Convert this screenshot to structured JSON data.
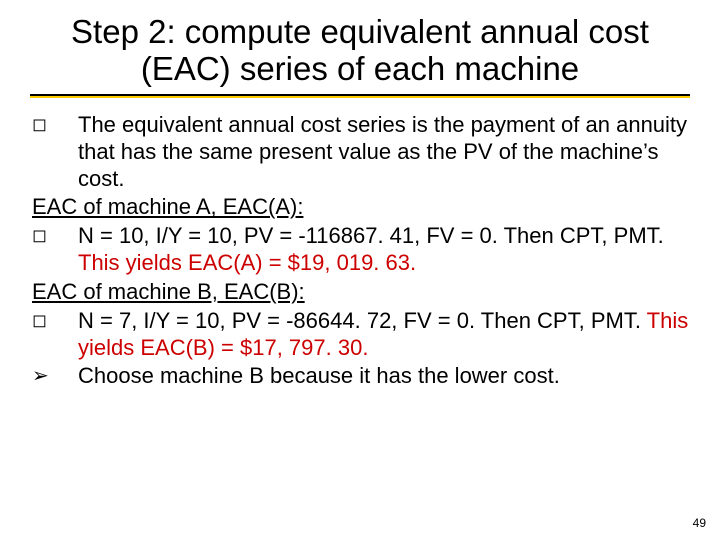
{
  "title": "Step 2: compute equivalent annual cost (EAC) series of each machine",
  "intro": "The equivalent annual cost series is the payment of an annuity that has the same present value as the PV of the machine’s cost.",
  "secA": {
    "heading": "EAC of machine A, EAC(A):",
    "line_pre": "N = 10, I/Y = 10, PV = -116867. 41, FV = 0. Then CPT, PMT. ",
    "line_red": "This yields EAC(A) = $19, 019. 63."
  },
  "secB": {
    "heading": "EAC of machine B, EAC(B):",
    "line_pre": "N = 7, I/Y = 10, PV = -86644. 72, FV = 0. Then CPT, PMT. ",
    "line_red": "This yields EAC(B) = $17, 797. 30."
  },
  "choose": "Choose machine B because it has the lower cost.",
  "pagenum": "49",
  "colors": {
    "red": "#cc0000",
    "accent": "#ffcc00",
    "text": "#000000",
    "bg": "#ffffff"
  }
}
